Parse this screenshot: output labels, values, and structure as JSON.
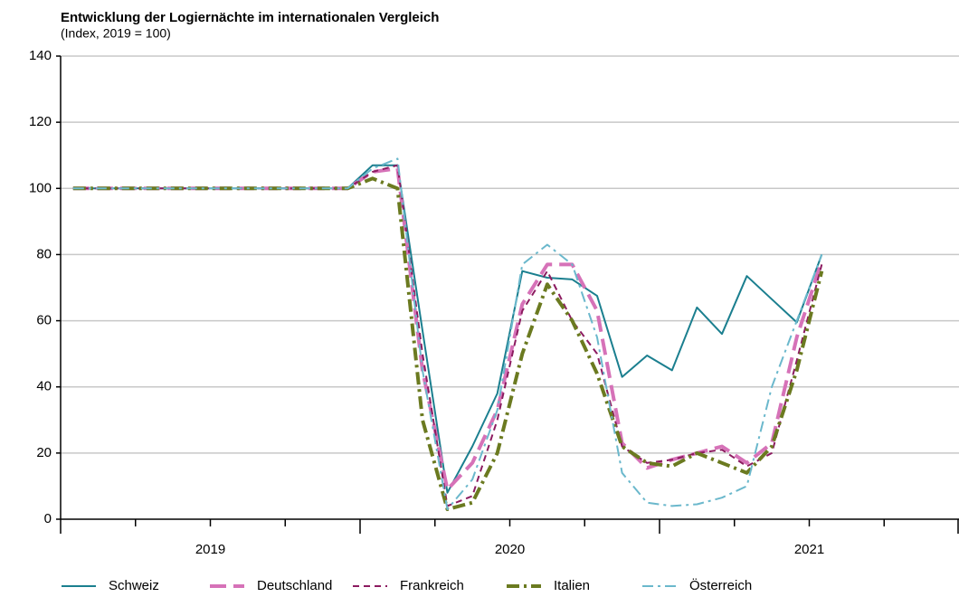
{
  "chart_data": {
    "type": "line",
    "title": "Entwicklung der Logiernächte im internationalen Vergleich",
    "subtitle": "(Index, 2019 = 100)",
    "categories": [
      null,
      null,
      null,
      null,
      null,
      null,
      null,
      null,
      null,
      null,
      null,
      null,
      null,
      null,
      null,
      null,
      null,
      null,
      null,
      null,
      null,
      null,
      null,
      null,
      null,
      null,
      null,
      null,
      null,
      null,
      null
    ],
    "year_labels": [
      "2019",
      "2020",
      "2021"
    ],
    "ylim": [
      0,
      140
    ],
    "yticks": [
      0,
      20,
      40,
      60,
      80,
      100,
      120,
      140
    ],
    "grid": true,
    "legend": "bottom",
    "series": [
      {
        "name": "Schweiz",
        "color": "#1b7f8f",
        "width": 2,
        "dash": "",
        "values": [
          100,
          100,
          100,
          100,
          100,
          100,
          100,
          100,
          100,
          100,
          100,
          100,
          107,
          107,
          57,
          8,
          22,
          38,
          75,
          73,
          72.5,
          67.5,
          43,
          49.5,
          45,
          64,
          56,
          73.5,
          66.5,
          59.5,
          80
        ]
      },
      {
        "name": "Deutschland",
        "color": "#d672b8",
        "width": 4,
        "dash": "18 8",
        "values": [
          100,
          100,
          100,
          100,
          100,
          100,
          100,
          100,
          100,
          100,
          100,
          100,
          105,
          106,
          45,
          9,
          17,
          33,
          65,
          77,
          77,
          63,
          23,
          15.5,
          18,
          20,
          22,
          17,
          23,
          55,
          78
        ]
      },
      {
        "name": "Frankreich",
        "color": "#8c1b60",
        "width": 2,
        "dash": "7 5",
        "values": [
          100,
          100,
          100,
          100,
          100,
          100,
          100,
          100,
          100,
          100,
          100,
          100,
          105,
          107,
          50,
          4,
          7,
          30,
          63,
          75,
          60,
          50,
          22,
          17,
          18,
          20,
          21,
          16,
          20,
          48,
          77
        ]
      },
      {
        "name": "Italien",
        "color": "#6b7a20",
        "width": 4,
        "dash": "14 5 3 5",
        "values": [
          100,
          100,
          100,
          100,
          100,
          100,
          100,
          100,
          100,
          100,
          100,
          100,
          103,
          100,
          30,
          3,
          5,
          20,
          50,
          71,
          60,
          44,
          22,
          17,
          16,
          20,
          17,
          14,
          22,
          45,
          75
        ]
      },
      {
        "name": "Österreich",
        "color": "#6bb8cc",
        "width": 2,
        "dash": "12 5 3 5",
        "values": [
          100,
          100,
          100,
          100,
          100,
          100,
          100,
          100,
          100,
          100,
          100,
          100,
          106,
          109,
          45,
          3,
          12,
          33,
          77,
          83,
          77,
          55,
          14,
          5,
          4,
          4.5,
          6.5,
          10,
          40,
          60,
          80
        ]
      }
    ]
  }
}
